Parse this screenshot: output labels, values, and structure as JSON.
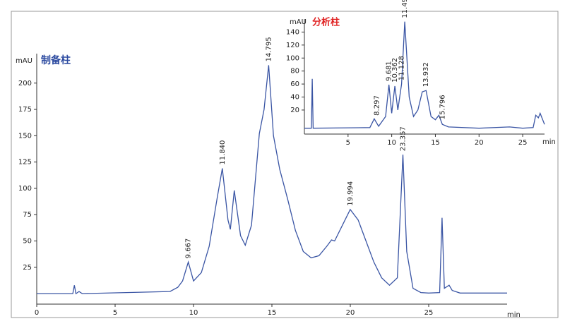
{
  "chart_data": [
    {
      "type": "line",
      "title": "制备柱",
      "ylabel": "mAU",
      "xlabel": "min",
      "color": "#3a55a4",
      "xlim": [
        0,
        30
      ],
      "ylim": [
        -10,
        228
      ],
      "xticks": [
        0,
        5,
        10,
        15,
        20,
        25
      ],
      "yticks": [
        25,
        50,
        75,
        100,
        125,
        150,
        175,
        200
      ],
      "x": [
        0,
        2.3,
        2.4,
        2.5,
        2.7,
        2.9,
        8.5,
        9.0,
        9.3,
        9.667,
        10.0,
        10.5,
        11.0,
        11.5,
        11.84,
        12.2,
        12.35,
        12.6,
        13.0,
        13.3,
        13.7,
        14.2,
        14.5,
        14.795,
        15.1,
        15.5,
        16.0,
        16.5,
        17.0,
        17.5,
        18.0,
        18.5,
        18.8,
        19.0,
        19.5,
        19.994,
        20.5,
        21.0,
        21.5,
        22.0,
        22.5,
        23.0,
        23.2,
        23.357,
        23.6,
        24.0,
        24.5,
        25.0,
        25.7,
        25.85,
        26.0,
        26.3,
        26.5,
        27.0,
        30.0
      ],
      "values": [
        0,
        0,
        8,
        0,
        2,
        0,
        2,
        6,
        12,
        30,
        12,
        20,
        45,
        90,
        119,
        70,
        61,
        98,
        55,
        46,
        65,
        152,
        175,
        217,
        150,
        118,
        90,
        60,
        40,
        34,
        36,
        45,
        51,
        50,
        65,
        80,
        70,
        50,
        30,
        15,
        8,
        15,
        80,
        132,
        40,
        5,
        1,
        0.5,
        1,
        72,
        5,
        8,
        3,
        0.5,
        0.5
      ],
      "annotations": [
        {
          "text": "9.667",
          "x": 9.667,
          "y": 30
        },
        {
          "text": "11.840",
          "x": 11.84,
          "y": 119
        },
        {
          "text": "14.795",
          "x": 14.795,
          "y": 217
        },
        {
          "text": "19.994",
          "x": 19.994,
          "y": 80
        },
        {
          "text": "23.357",
          "x": 23.357,
          "y": 132
        }
      ]
    },
    {
      "type": "line",
      "title": "分析柱",
      "ylabel": "mAU",
      "xlabel": "min",
      "color": "#3a55a4",
      "xlim": [
        0,
        27.5
      ],
      "ylim": [
        -17,
        160
      ],
      "xticks": [
        5,
        10,
        15,
        20,
        25
      ],
      "yticks": [
        20,
        40,
        60,
        80,
        100,
        120,
        140
      ],
      "x": [
        0,
        0.8,
        0.9,
        1.0,
        7.5,
        8.0,
        8.5,
        9.3,
        9.681,
        10.0,
        10.362,
        10.7,
        11.128,
        11.49,
        12.0,
        12.5,
        13.0,
        13.5,
        13.932,
        14.5,
        15.0,
        15.4,
        15.8,
        16.5,
        20.0,
        23.5,
        25.0,
        26.2,
        26.5,
        26.8,
        27.0,
        27.5
      ],
      "values": [
        -8,
        -8,
        68,
        -8,
        -7,
        6.5,
        -5,
        10,
        59,
        15,
        57,
        20,
        60,
        156,
        40,
        10,
        20,
        48,
        50,
        10,
        5,
        12,
        -2,
        -6,
        -8,
        -6,
        -8,
        -7,
        12,
        8,
        15,
        -2
      ],
      "annotations": [
        {
          "text": "8.297",
          "x": 8.297,
          "y": 6
        },
        {
          "text": "9.681",
          "x": 9.681,
          "y": 59
        },
        {
          "text": "10.362",
          "x": 10.362,
          "y": 57
        },
        {
          "text": "11.128",
          "x": 11.128,
          "y": 60
        },
        {
          "text": "11.490",
          "x": 11.49,
          "y": 156
        },
        {
          "text": "13.932",
          "x": 13.932,
          "y": 50
        },
        {
          "text": "15.796",
          "x": 15.796,
          "y": 0
        }
      ]
    }
  ]
}
